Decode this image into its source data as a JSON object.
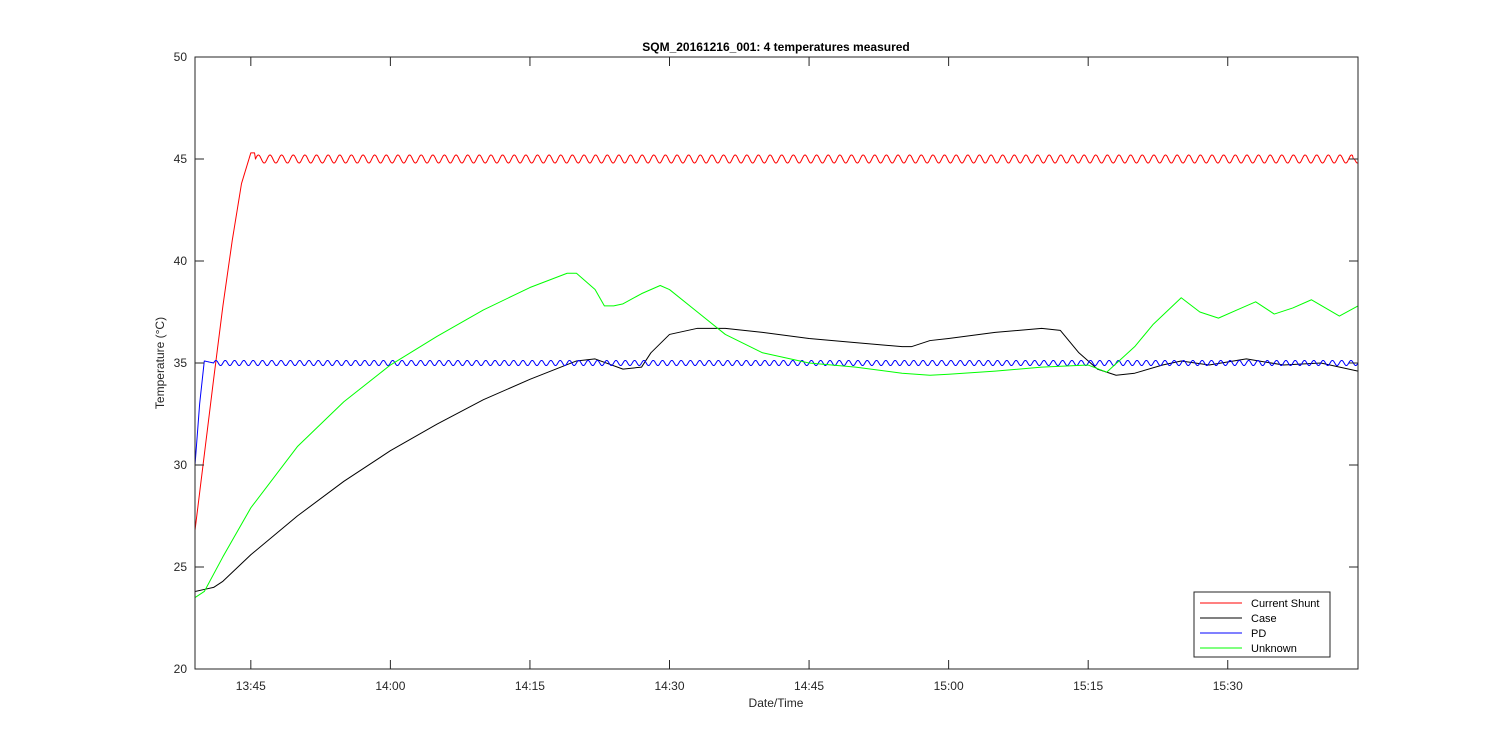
{
  "chart_data": {
    "type": "line",
    "title": "SQM_20161216_001: 4 temperatures measured",
    "xlabel": "Date/Time",
    "ylabel": "Temperature (°C)",
    "xlim": [
      "13:39",
      "15:44"
    ],
    "ylim": [
      20,
      50
    ],
    "x_ticks": [
      "13:45",
      "14:00",
      "14:15",
      "14:30",
      "14:45",
      "15:00",
      "15:15",
      "15:30"
    ],
    "y_ticks": [
      20,
      25,
      30,
      35,
      40,
      45,
      50
    ],
    "grid": false,
    "legend_position": "bottom-right",
    "series": [
      {
        "name": "Current Shunt",
        "color": "#ff0000",
        "x": [
          "13:39",
          "13:40",
          "13:41",
          "13:42",
          "13:43",
          "13:44",
          "13:45",
          "15:44"
        ],
        "y": [
          26.8,
          30.5,
          34.2,
          37.8,
          41.0,
          43.8,
          45.3,
          44.8
        ],
        "ripple": {
          "amplitude": 0.2,
          "period_min": 1.25,
          "start": "13:45.5",
          "center": 45.0
        }
      },
      {
        "name": "Case",
        "color": "#000000",
        "x": [
          "13:39",
          "13:40",
          "13:41",
          "13:42",
          "13:45",
          "13:50",
          "13:55",
          "14:00",
          "14:05",
          "14:10",
          "14:15",
          "14:20",
          "14:22",
          "14:25",
          "14:27",
          "14:28",
          "14:30",
          "14:33",
          "14:36",
          "14:40",
          "14:45",
          "14:50",
          "14:55",
          "14:56",
          "14:58",
          "15:00",
          "15:05",
          "15:10",
          "15:12",
          "15:14",
          "15:16",
          "15:18",
          "15:20",
          "15:23",
          "15:25",
          "15:28",
          "15:32",
          "15:36",
          "15:40",
          "15:44"
        ],
        "y": [
          23.8,
          23.9,
          24.0,
          24.3,
          25.6,
          27.5,
          29.2,
          30.7,
          32.0,
          33.2,
          34.2,
          35.1,
          35.2,
          34.7,
          34.8,
          35.5,
          36.4,
          36.7,
          36.7,
          36.5,
          36.2,
          36.0,
          35.8,
          35.8,
          36.1,
          36.2,
          36.5,
          36.7,
          36.6,
          35.5,
          34.7,
          34.4,
          34.5,
          34.9,
          35.1,
          34.9,
          35.2,
          34.9,
          35.0,
          34.6
        ]
      },
      {
        "name": "PD",
        "color": "#0000ff",
        "x": [
          "13:39",
          "13:39.5",
          "13:40",
          "13:41",
          "15:44"
        ],
        "y": [
          30.0,
          33.0,
          35.1,
          35.0,
          35.0
        ],
        "ripple": {
          "amplitude": 0.13,
          "period_min": 1.0,
          "start": "13:41",
          "center": 35.0
        }
      },
      {
        "name": "Unknown",
        "color": "#00ff00",
        "x": [
          "13:39",
          "13:40",
          "13:42",
          "13:45",
          "13:50",
          "13:55",
          "14:00",
          "14:05",
          "14:10",
          "14:15",
          "14:19",
          "14:20",
          "14:22",
          "14:23",
          "14:24",
          "14:25",
          "14:27",
          "14:29",
          "14:30",
          "14:33",
          "14:36",
          "14:40",
          "14:45",
          "14:50",
          "14:55",
          "14:58",
          "15:00",
          "15:05",
          "15:10",
          "15:15",
          "15:17",
          "15:20",
          "15:22",
          "15:25",
          "15:27",
          "15:29",
          "15:31",
          "15:33",
          "15:35",
          "15:37",
          "15:39",
          "15:42",
          "15:44"
        ],
        "y": [
          23.5,
          23.8,
          25.5,
          27.9,
          30.9,
          33.1,
          34.9,
          36.3,
          37.6,
          38.7,
          39.4,
          39.4,
          38.6,
          37.8,
          37.8,
          37.9,
          38.4,
          38.8,
          38.6,
          37.5,
          36.4,
          35.5,
          35.0,
          34.8,
          34.5,
          34.4,
          34.45,
          34.6,
          34.8,
          34.9,
          34.55,
          35.8,
          36.9,
          38.2,
          37.5,
          37.2,
          37.6,
          38.0,
          37.4,
          37.7,
          38.1,
          37.3,
          37.8
        ]
      }
    ]
  }
}
